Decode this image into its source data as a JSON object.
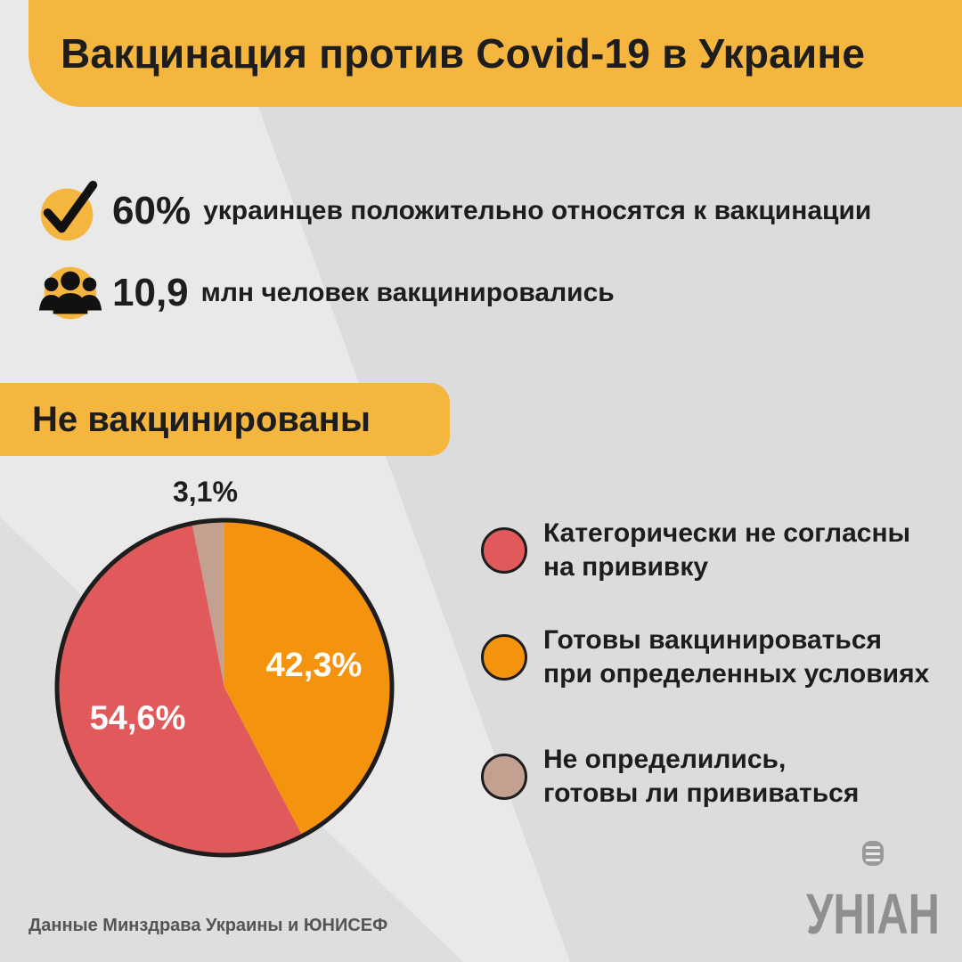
{
  "header": {
    "title": "Вакцинация против Covid-19 в Украине"
  },
  "stats": [
    {
      "icon": "checkmark-icon",
      "value": "60%",
      "text": "украинцев положительно относятся к вакцинации"
    },
    {
      "icon": "people-icon",
      "value": "10,9",
      "text": "млн человек вакцинировались"
    }
  ],
  "section": {
    "label": "Не вакцинированы"
  },
  "chart_data": {
    "type": "pie",
    "title": "Не вакцинированы",
    "series": [
      {
        "name": "Категорически не согласны на прививку",
        "value": 54.6,
        "label": "54,6%",
        "color": "#e05a5c"
      },
      {
        "name": "Готовы вакцинироваться при определенных условиях",
        "value": 42.3,
        "label": "42,3%",
        "color": "#f4930e"
      },
      {
        "name": "Не определились, готовы ли прививаться",
        "value": 3.1,
        "label": "3,1%",
        "color": "#c3a090"
      }
    ]
  },
  "legend": [
    {
      "line1": "Категорически не согласны",
      "line2": "на прививку",
      "color": "#e05a5c"
    },
    {
      "line1": "Готовы вакцинироваться",
      "line2": "при определенных условиях",
      "color": "#f4930e"
    },
    {
      "line1": "Не определились,",
      "line2": "готовы ли прививаться",
      "color": "#c3a090"
    }
  ],
  "footer": {
    "source": "Данные Минздрава Украины и ЮНИСЕФ"
  },
  "logo": {
    "text": "УНІАН",
    "icon": "microphone-icon"
  },
  "colors": {
    "accent": "#f4b63f",
    "text": "#1d1d1d",
    "background": "#e9e9e9"
  }
}
